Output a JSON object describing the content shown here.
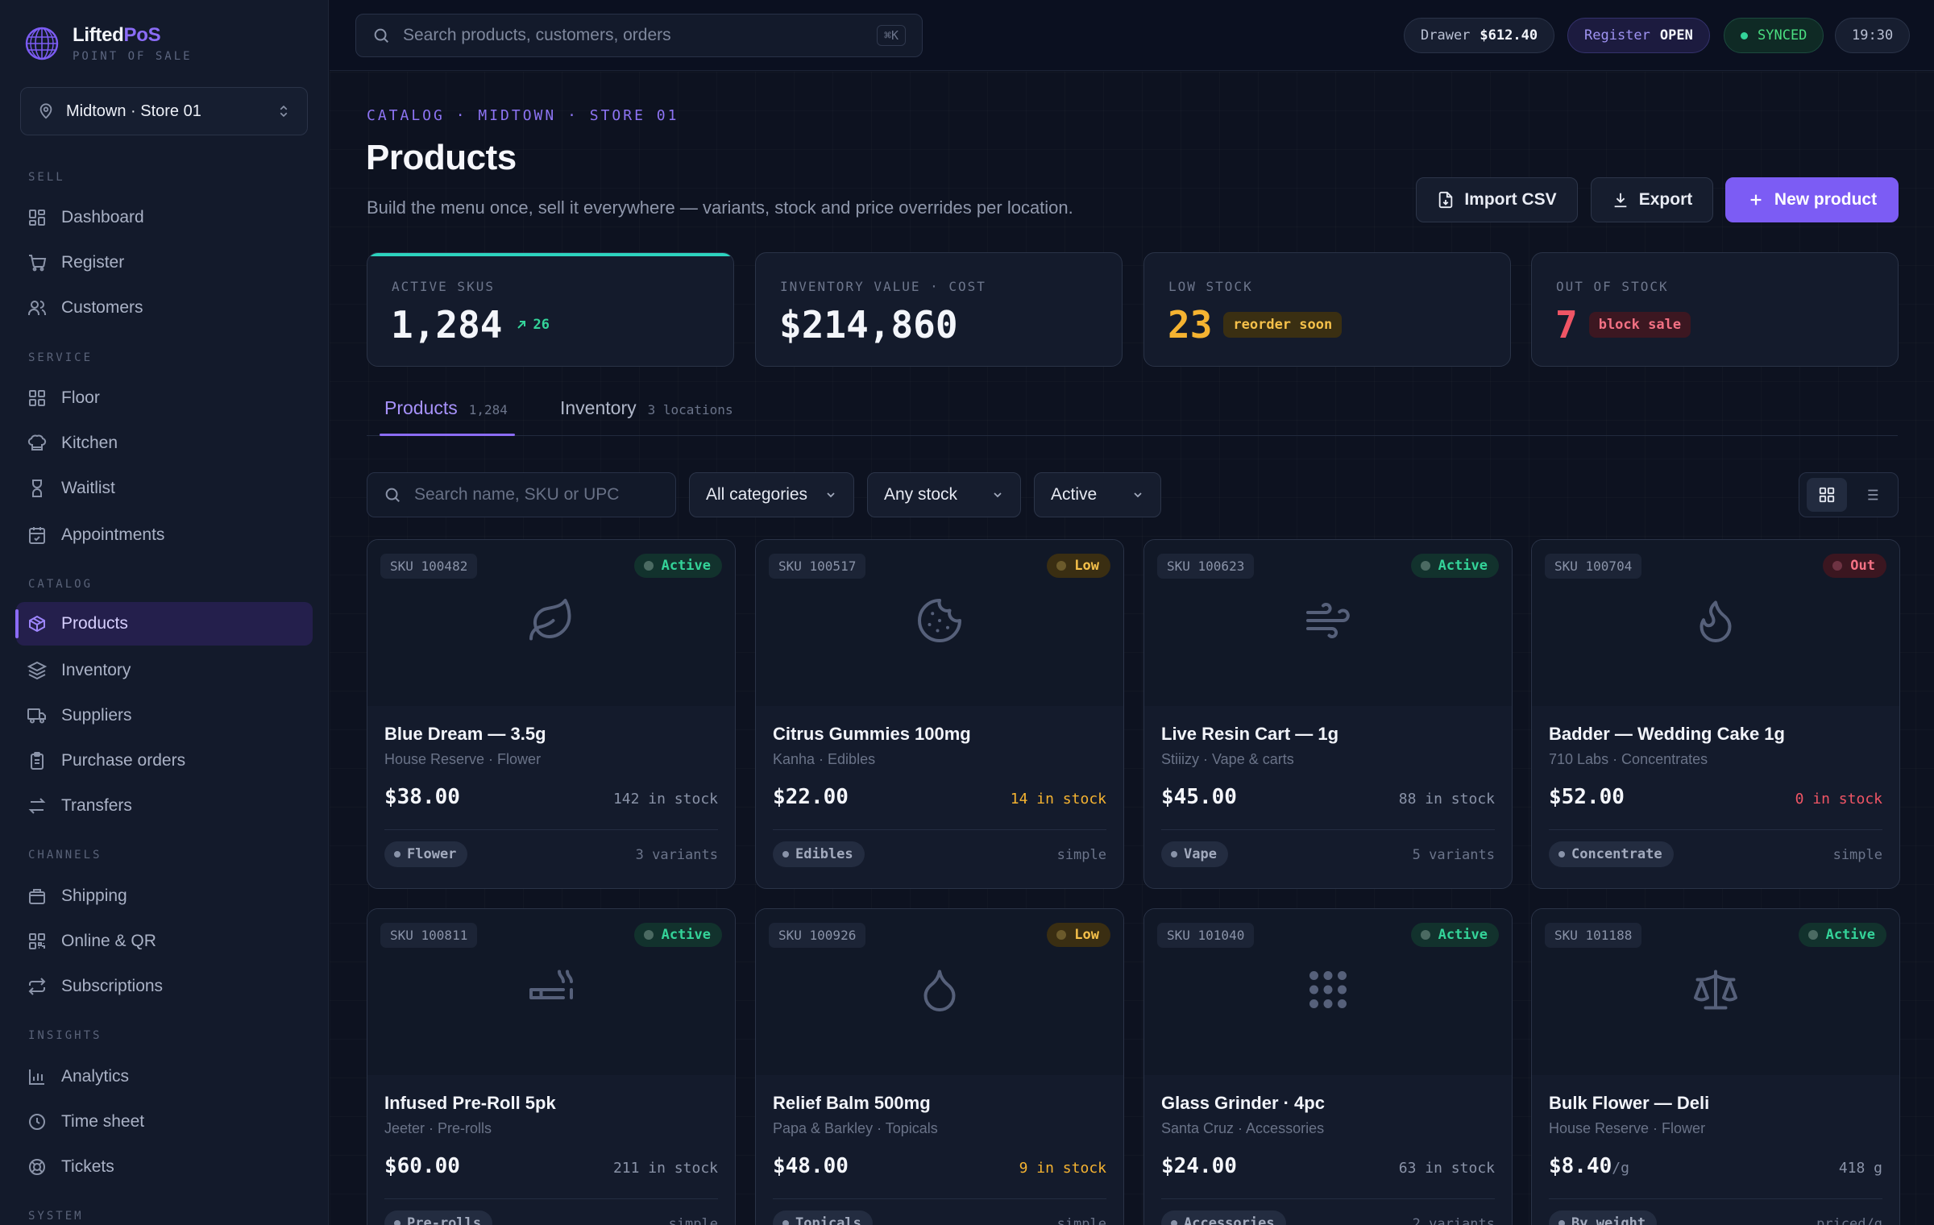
{
  "brand": {
    "name_a": "Lifted",
    "name_b": "PoS",
    "subtitle": "POINT OF SALE"
  },
  "store_select": {
    "value": "Midtown · Store 01"
  },
  "nav": {
    "sections": {
      "sell": "SELL",
      "service": "SERVICE",
      "catalog": "CATALOG",
      "channels": "CHANNELS",
      "insights": "INSIGHTS",
      "system": "SYSTEM"
    },
    "items": {
      "dashboard": "Dashboard",
      "register": "Register",
      "customers": "Customers",
      "floor": "Floor",
      "kitchen": "Kitchen",
      "waitlist": "Waitlist",
      "appointments": "Appointments",
      "products": "Products",
      "inventory": "Inventory",
      "suppliers": "Suppliers",
      "purchase_orders": "Purchase orders",
      "transfers": "Transfers",
      "shipping": "Shipping",
      "online_qr": "Online & QR",
      "subscriptions": "Subscriptions",
      "analytics": "Analytics",
      "time_sheet": "Time sheet",
      "tickets": "Tickets"
    },
    "active": "products"
  },
  "topbar": {
    "search_placeholder": "Search products, customers, orders",
    "search_shortcut": "⌘K",
    "drawer_label": "Drawer",
    "drawer_value": "$612.40",
    "register_label": "Register",
    "register_value": "OPEN",
    "sync_status": "SYNCED",
    "clock": "19:30"
  },
  "page": {
    "breadcrumb": "CATALOG · MIDTOWN · STORE 01",
    "title": "Products",
    "subtitle": "Build the menu once, sell it everywhere — variants, stock and price overrides per location.",
    "actions": {
      "import": "Import CSV",
      "export": "Export",
      "new": "New product"
    }
  },
  "stats": {
    "active_skus": {
      "label": "ACTIVE SKUS",
      "value": "1,284",
      "trend": "26"
    },
    "inventory_value": {
      "label": "INVENTORY VALUE · COST",
      "value": "$214,860"
    },
    "low_stock": {
      "label": "LOW STOCK",
      "value": "23",
      "tag": "reorder soon"
    },
    "out_of_stock": {
      "label": "OUT OF STOCK",
      "value": "7",
      "tag": "block sale"
    }
  },
  "tabs": {
    "products": {
      "label": "Products",
      "count": "1,284"
    },
    "inventory": {
      "label": "Inventory",
      "count": "3 locations"
    }
  },
  "filters": {
    "search_placeholder": "Search name, SKU or UPC",
    "category": "All categories",
    "stock": "Any stock",
    "status": "Active"
  },
  "products": [
    {
      "sku": "SKU 100482",
      "status": "Active",
      "icon": "leaf-icon",
      "name": "Blue Dream — 3.5g",
      "meta": "House Reserve · Flower",
      "price": "$38.00",
      "unit": "",
      "stock": "142 in stock",
      "category": "Flower",
      "variants": "3 variants"
    },
    {
      "sku": "SKU 100517",
      "status": "Low",
      "icon": "cookie-icon",
      "name": "Citrus Gummies 100mg",
      "meta": "Kanha · Edibles",
      "price": "$22.00",
      "unit": "",
      "stock": "14 in stock",
      "category": "Edibles",
      "variants": "simple"
    },
    {
      "sku": "SKU 100623",
      "status": "Active",
      "icon": "wind-icon",
      "name": "Live Resin Cart — 1g",
      "meta": "Stiiizy · Vape & carts",
      "price": "$45.00",
      "unit": "",
      "stock": "88 in stock",
      "category": "Vape",
      "variants": "5 variants"
    },
    {
      "sku": "SKU 100704",
      "status": "Out",
      "icon": "flame-icon",
      "name": "Badder — Wedding Cake 1g",
      "meta": "710 Labs · Concentrates",
      "price": "$52.00",
      "unit": "",
      "stock": "0 in stock",
      "category": "Concentrate",
      "variants": "simple"
    },
    {
      "sku": "SKU 100811",
      "status": "Active",
      "icon": "cigarette-icon",
      "name": "Infused Pre-Roll 5pk",
      "meta": "Jeeter · Pre-rolls",
      "price": "$60.00",
      "unit": "",
      "stock": "211 in stock",
      "category": "Pre-rolls",
      "variants": "simple"
    },
    {
      "sku": "SKU 100926",
      "status": "Low",
      "icon": "droplet-icon",
      "name": "Relief Balm 500mg",
      "meta": "Papa & Barkley · Topicals",
      "price": "$48.00",
      "unit": "",
      "stock": "9 in stock",
      "category": "Topicals",
      "variants": "simple"
    },
    {
      "sku": "SKU 101040",
      "status": "Active",
      "icon": "grip-icon",
      "name": "Glass Grinder · 4pc",
      "meta": "Santa Cruz · Accessories",
      "price": "$24.00",
      "unit": "",
      "stock": "63 in stock",
      "category": "Accessories",
      "variants": "2 variants"
    },
    {
      "sku": "SKU 101188",
      "status": "Active",
      "icon": "scale-icon",
      "name": "Bulk Flower — Deli",
      "meta": "House Reserve · Flower",
      "price": "$8.40",
      "unit": "/g",
      "stock": "418 g",
      "category": "By weight",
      "variants": "priced/g"
    }
  ]
}
